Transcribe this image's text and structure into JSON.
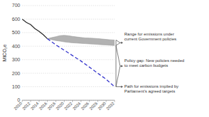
{
  "chart_data": {
    "type": "line",
    "ylabel": "MtCO₂e",
    "xlim": [
      2010,
      2032
    ],
    "ylim": [
      0,
      700
    ],
    "xticks": [
      2010,
      2012,
      2014,
      2016,
      2018,
      2020,
      2022,
      2024,
      2026,
      2028,
      2030,
      2032
    ],
    "yticks": [
      0,
      100,
      200,
      300,
      400,
      500,
      600,
      700
    ],
    "grid": true,
    "series": [
      {
        "x": [
          2010,
          2011,
          2012,
          2013,
          2014,
          2015,
          2016
        ],
        "values": [
          600,
          575,
          560,
          530,
          510,
          485,
          455
        ],
        "color": "#222222"
      },
      {
        "type": "area",
        "x": [
          2016,
          2017,
          2018,
          2019,
          2020,
          2021,
          2022,
          2023,
          2024,
          2025,
          2026,
          2027,
          2028,
          2029,
          2030,
          2031,
          2032
        ],
        "values": [
          455,
          463,
          470,
          478,
          480,
          477,
          472,
          468,
          464,
          461,
          460,
          458,
          456,
          453,
          450,
          447,
          445
        ],
        "lower": [
          455,
          448,
          442,
          437,
          432,
          428,
          425,
          423,
          421,
          419,
          417,
          415,
          413,
          411,
          409,
          407,
          405
        ],
        "color": "#aaaaaa"
      },
      {
        "x": [
          2016,
          2018,
          2020,
          2022,
          2024,
          2026,
          2028,
          2030,
          2032
        ],
        "values": [
          455,
          410,
          370,
          330,
          290,
          245,
          200,
          155,
          100
        ],
        "color": "#3333cc",
        "line_style": "dashed"
      }
    ],
    "annotations": [
      "Range for emissions under\ncurrent Government policies",
      "Policy gap: New policies needed\nto meet carbon budgets",
      "Path for emissions implied by\nParliament's agreed targets"
    ]
  }
}
